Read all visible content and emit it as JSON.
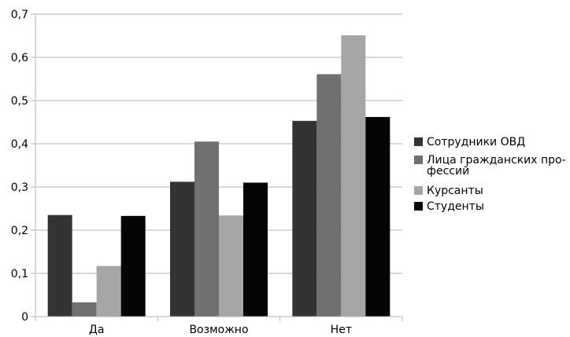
{
  "chart_data": {
    "type": "bar",
    "title": "",
    "xlabel": "",
    "ylabel": "",
    "categories": [
      "Да",
      "Возможно",
      "Нет"
    ],
    "ylim": [
      0,
      0.7
    ],
    "yticks": [
      "0",
      "0,1",
      "0,2",
      "0,3",
      "0,4",
      "0,5",
      "0,6",
      "0,7"
    ],
    "grid": true,
    "legend_position": "right",
    "series": [
      {
        "name": "Сотрудники ОВД",
        "color": "#333333",
        "values": [
          0.235,
          0.312,
          0.453
        ]
      },
      {
        "name": [
          "Лица гражданских про-",
          "фессий"
        ],
        "color": "#707070",
        "values": [
          0.033,
          0.405,
          0.561
        ]
      },
      {
        "name": "Курсанты",
        "color": "#a6a6a6",
        "values": [
          0.117,
          0.234,
          0.651
        ]
      },
      {
        "name": "Студенты",
        "color": "#050505",
        "values": [
          0.233,
          0.31,
          0.462
        ]
      }
    ]
  }
}
